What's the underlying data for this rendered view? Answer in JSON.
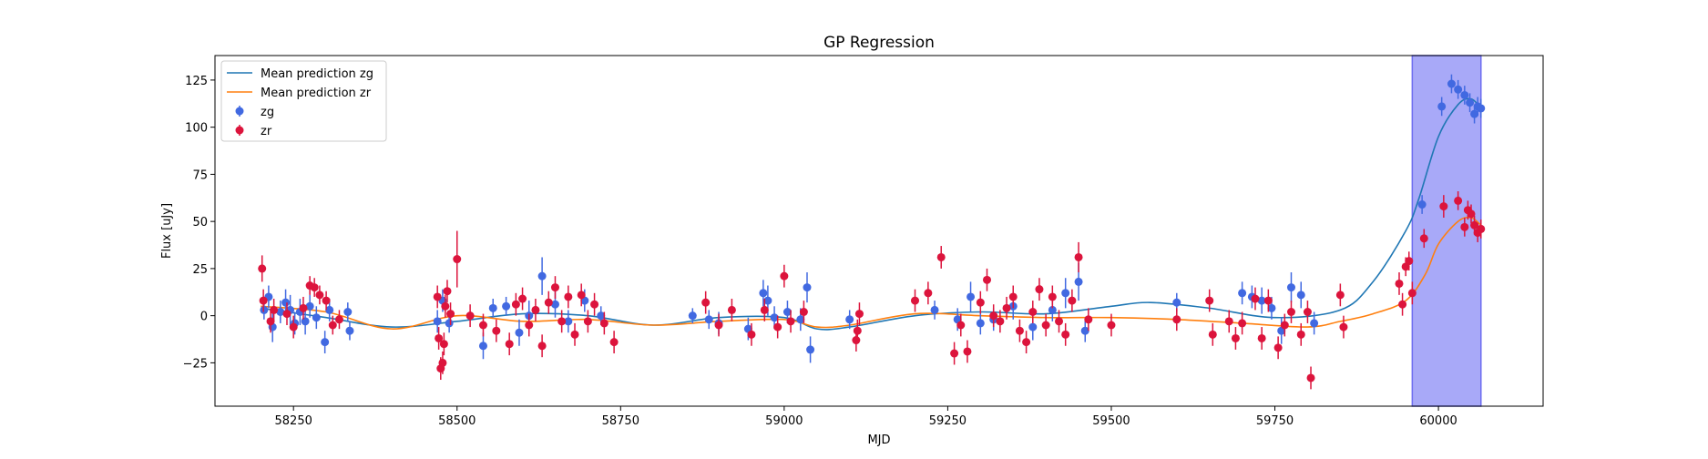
{
  "chart_data": {
    "type": "scatter",
    "title": "GP Regression",
    "xlabel": "MJD",
    "ylabel": "Flux [uJy]",
    "xlim": [
      58130,
      60160
    ],
    "ylim": [
      -48,
      138
    ],
    "xticks": [
      58250,
      58500,
      58750,
      59000,
      59250,
      59500,
      59750,
      60000
    ],
    "yticks": [
      -25,
      0,
      25,
      50,
      75,
      100,
      125
    ],
    "grid": false,
    "legend_position": "top-left",
    "shaded_region": {
      "x": [
        59960,
        60065
      ],
      "color": "#a8a9f8"
    },
    "series": [
      {
        "name": "Mean prediction zg",
        "kind": "line",
        "color": "#1f77b4",
        "x": [
          58200,
          58300,
          58400,
          58500,
          58600,
          58700,
          58800,
          58900,
          59000,
          59050,
          59100,
          59200,
          59300,
          59400,
          59500,
          59560,
          59650,
          59750,
          59850,
          59900,
          59950,
          59970,
          60000,
          60030,
          60050,
          60065
        ],
        "y": [
          4,
          -1,
          -6,
          -3,
          1,
          0,
          -5,
          -1,
          -1,
          -7,
          -6,
          0,
          2,
          1,
          5,
          7,
          4,
          -1,
          3,
          18,
          45,
          62,
          95,
          112,
          115,
          110
        ]
      },
      {
        "name": "Mean prediction zr",
        "kind": "line",
        "color": "#ff7f0e",
        "x": [
          58200,
          58300,
          58400,
          58500,
          58600,
          58700,
          58800,
          58900,
          59000,
          59050,
          59100,
          59200,
          59300,
          59400,
          59500,
          59600,
          59700,
          59800,
          59850,
          59900,
          59950,
          59980,
          60000,
          60030,
          60050,
          60065
        ],
        "y": [
          5,
          2,
          -7,
          0,
          -3,
          -2,
          -5,
          -3,
          -2,
          -6,
          -5,
          1,
          0,
          -1,
          -1,
          -2,
          -4,
          -6,
          -3,
          1,
          8,
          22,
          38,
          50,
          52,
          48
        ]
      },
      {
        "name": "zg",
        "kind": "errorbar",
        "color": "#4169e1",
        "points": [
          [
            58205,
            3,
            5
          ],
          [
            58212,
            10,
            6
          ],
          [
            58218,
            -6,
            8
          ],
          [
            58230,
            2,
            6
          ],
          [
            58238,
            7,
            7
          ],
          [
            58245,
            3,
            8
          ],
          [
            58252,
            -4,
            6
          ],
          [
            58260,
            2,
            7
          ],
          [
            58268,
            -3,
            7
          ],
          [
            58275,
            5,
            6
          ],
          [
            58285,
            -1,
            6
          ],
          [
            58298,
            -14,
            6
          ],
          [
            58305,
            3,
            6
          ],
          [
            58333,
            2,
            5
          ],
          [
            58336,
            -8,
            5
          ],
          [
            58470,
            -3,
            6
          ],
          [
            58478,
            8,
            6
          ],
          [
            58488,
            -4,
            5
          ],
          [
            58540,
            -16,
            7
          ],
          [
            58555,
            4,
            5
          ],
          [
            58575,
            5,
            5
          ],
          [
            58595,
            -9,
            7
          ],
          [
            58610,
            0,
            8
          ],
          [
            58630,
            21,
            10
          ],
          [
            58650,
            6,
            7
          ],
          [
            58670,
            -3,
            6
          ],
          [
            58695,
            8,
            6
          ],
          [
            58720,
            0,
            5
          ],
          [
            58860,
            0,
            4
          ],
          [
            58885,
            -2,
            5
          ],
          [
            58900,
            -4,
            6
          ],
          [
            58945,
            -7,
            6
          ],
          [
            58968,
            12,
            7
          ],
          [
            58975,
            8,
            8
          ],
          [
            58985,
            -1,
            6
          ],
          [
            59005,
            2,
            6
          ],
          [
            59025,
            -2,
            6
          ],
          [
            59035,
            15,
            8
          ],
          [
            59040,
            -18,
            7
          ],
          [
            59100,
            -2,
            5
          ],
          [
            59230,
            3,
            5
          ],
          [
            59265,
            -2,
            6
          ],
          [
            59285,
            10,
            8
          ],
          [
            59300,
            -4,
            6
          ],
          [
            59320,
            -2,
            6
          ],
          [
            59350,
            5,
            7
          ],
          [
            59380,
            -6,
            7
          ],
          [
            59410,
            3,
            6
          ],
          [
            59430,
            12,
            8
          ],
          [
            59450,
            18,
            10
          ],
          [
            59460,
            -8,
            6
          ],
          [
            59600,
            7,
            5
          ],
          [
            59700,
            12,
            6
          ],
          [
            59715,
            10,
            6
          ],
          [
            59730,
            8,
            7
          ],
          [
            59745,
            4,
            6
          ],
          [
            59760,
            -8,
            7
          ],
          [
            59775,
            15,
            8
          ],
          [
            59790,
            11,
            7
          ],
          [
            59810,
            -4,
            6
          ],
          [
            59975,
            59,
            5
          ],
          [
            60005,
            111,
            5
          ],
          [
            60020,
            123,
            5
          ],
          [
            60030,
            120,
            5
          ],
          [
            60040,
            117,
            5
          ],
          [
            60048,
            113,
            5
          ],
          [
            60055,
            107,
            5
          ],
          [
            60060,
            111,
            5
          ],
          [
            60065,
            110,
            5
          ]
        ]
      },
      {
        "name": "zr",
        "kind": "errorbar",
        "color": "#dc143c",
        "points": [
          [
            58202,
            25,
            7
          ],
          [
            58204,
            8,
            6
          ],
          [
            58215,
            -3,
            6
          ],
          [
            58220,
            3,
            6
          ],
          [
            58240,
            1,
            6
          ],
          [
            58250,
            -6,
            6
          ],
          [
            58265,
            4,
            6
          ],
          [
            58275,
            16,
            5
          ],
          [
            58282,
            15,
            5
          ],
          [
            58290,
            11,
            5
          ],
          [
            58300,
            8,
            5
          ],
          [
            58310,
            -5,
            5
          ],
          [
            58320,
            -2,
            5
          ],
          [
            58470,
            10,
            6
          ],
          [
            58472,
            -12,
            6
          ],
          [
            58475,
            -28,
            6
          ],
          [
            58478,
            -25,
            6
          ],
          [
            58480,
            -15,
            6
          ],
          [
            58482,
            5,
            6
          ],
          [
            58485,
            13,
            6
          ],
          [
            58490,
            1,
            6
          ],
          [
            58500,
            30,
            15
          ],
          [
            58520,
            0,
            6
          ],
          [
            58540,
            -5,
            6
          ],
          [
            58560,
            -8,
            6
          ],
          [
            58580,
            -15,
            6
          ],
          [
            58590,
            6,
            6
          ],
          [
            58600,
            9,
            6
          ],
          [
            58610,
            -5,
            6
          ],
          [
            58620,
            3,
            6
          ],
          [
            58630,
            -16,
            6
          ],
          [
            58640,
            7,
            6
          ],
          [
            58650,
            15,
            6
          ],
          [
            58660,
            -3,
            6
          ],
          [
            58670,
            10,
            6
          ],
          [
            58680,
            -10,
            6
          ],
          [
            58690,
            11,
            6
          ],
          [
            58700,
            -3,
            6
          ],
          [
            58710,
            6,
            6
          ],
          [
            58725,
            -4,
            6
          ],
          [
            58740,
            -14,
            6
          ],
          [
            58880,
            7,
            6
          ],
          [
            58900,
            -5,
            6
          ],
          [
            58920,
            3,
            6
          ],
          [
            58950,
            -10,
            6
          ],
          [
            58970,
            3,
            6
          ],
          [
            58990,
            -6,
            6
          ],
          [
            59000,
            21,
            6
          ],
          [
            59010,
            -3,
            6
          ],
          [
            59030,
            2,
            6
          ],
          [
            59110,
            -13,
            6
          ],
          [
            59112,
            -8,
            6
          ],
          [
            59115,
            1,
            6
          ],
          [
            59200,
            8,
            6
          ],
          [
            59220,
            12,
            6
          ],
          [
            59240,
            31,
            6
          ],
          [
            59260,
            -20,
            6
          ],
          [
            59270,
            -5,
            6
          ],
          [
            59280,
            -19,
            6
          ],
          [
            59300,
            7,
            6
          ],
          [
            59310,
            19,
            6
          ],
          [
            59320,
            0,
            6
          ],
          [
            59330,
            -3,
            6
          ],
          [
            59340,
            4,
            6
          ],
          [
            59350,
            10,
            6
          ],
          [
            59360,
            -8,
            6
          ],
          [
            59370,
            -14,
            6
          ],
          [
            59380,
            2,
            6
          ],
          [
            59390,
            14,
            6
          ],
          [
            59400,
            -5,
            6
          ],
          [
            59410,
            10,
            6
          ],
          [
            59420,
            -3,
            6
          ],
          [
            59430,
            -10,
            6
          ],
          [
            59440,
            8,
            6
          ],
          [
            59450,
            31,
            8
          ],
          [
            59465,
            -2,
            6
          ],
          [
            59500,
            -5,
            6
          ],
          [
            59600,
            -2,
            6
          ],
          [
            59650,
            8,
            6
          ],
          [
            59655,
            -10,
            6
          ],
          [
            59680,
            -3,
            6
          ],
          [
            59690,
            -12,
            6
          ],
          [
            59700,
            -4,
            6
          ],
          [
            59720,
            9,
            6
          ],
          [
            59730,
            -12,
            6
          ],
          [
            59740,
            8,
            6
          ],
          [
            59755,
            -17,
            6
          ],
          [
            59765,
            -5,
            6
          ],
          [
            59775,
            2,
            6
          ],
          [
            59790,
            -10,
            6
          ],
          [
            59800,
            2,
            6
          ],
          [
            59805,
            -33,
            6
          ],
          [
            59850,
            11,
            6
          ],
          [
            59855,
            -6,
            6
          ],
          [
            59940,
            17,
            6
          ],
          [
            59945,
            6,
            6
          ],
          [
            59950,
            26,
            5
          ],
          [
            59955,
            29,
            5
          ],
          [
            59960,
            12,
            6
          ],
          [
            59978,
            41,
            5
          ],
          [
            60008,
            58,
            6
          ],
          [
            60030,
            61,
            5
          ],
          [
            60040,
            47,
            5
          ],
          [
            60045,
            56,
            5
          ],
          [
            60050,
            54,
            5
          ],
          [
            60055,
            48,
            5
          ],
          [
            60060,
            44,
            5
          ],
          [
            60065,
            46,
            5
          ]
        ]
      }
    ]
  }
}
